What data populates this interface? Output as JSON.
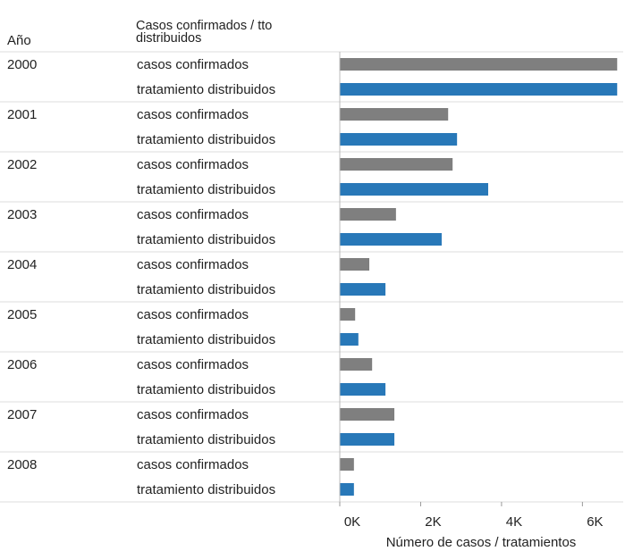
{
  "chart_data": {
    "type": "bar",
    "year_header": "Año",
    "series_header": "Casos confirmados / tto distribuidos",
    "xlabel": "Número de casos / tratamientos",
    "categories": [
      "2000",
      "2001",
      "2002",
      "2003",
      "2004",
      "2005",
      "2006",
      "2007",
      "2008"
    ],
    "series": [
      {
        "name": "casos confirmados",
        "color": "#7f7f7f",
        "values": [
          6860,
          2680,
          2790,
          1390,
          730,
          380,
          800,
          1350,
          350
        ]
      },
      {
        "name": "tratamiento distribuidos",
        "color": "#2878b8",
        "values": [
          6860,
          2900,
          3670,
          2520,
          1130,
          460,
          1130,
          1350,
          350
        ]
      }
    ],
    "xlim": [
      0,
      7000
    ],
    "xticks": [
      {
        "value": 0,
        "label": "0K"
      },
      {
        "value": 2000,
        "label": "2K"
      },
      {
        "value": 4000,
        "label": "4K"
      },
      {
        "value": 6000,
        "label": "6K"
      }
    ]
  }
}
